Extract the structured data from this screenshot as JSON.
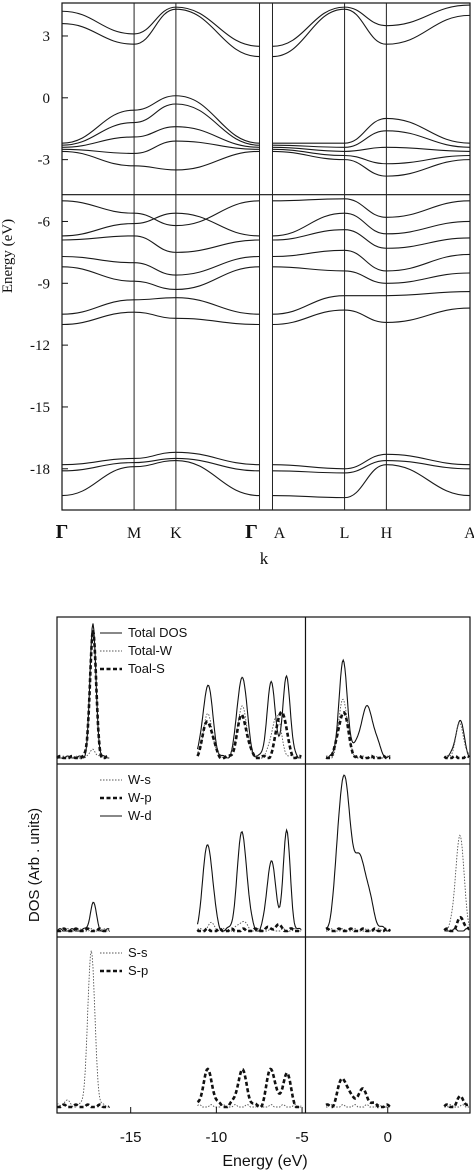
{
  "chart_data": [
    {
      "type": "line",
      "subtype": "band-structure",
      "ylabel": "Energy (eV)",
      "xlabel": "k",
      "ylim": [
        -20,
        4.6
      ],
      "y_ticks": [
        3,
        0,
        -3,
        -6,
        -9,
        -12,
        -15,
        -18
      ],
      "k_points": [
        {
          "label": "Γ",
          "x": 0,
          "font": "bold"
        },
        {
          "label": "M",
          "x": 1.0
        },
        {
          "label": "K",
          "x": 1.58
        },
        {
          "label": "Γ",
          "x": 2.74,
          "font": "bold"
        },
        {
          "label": "A",
          "x": 2.92
        },
        {
          "label": "L",
          "x": 3.92
        },
        {
          "label": "H",
          "x": 4.5
        },
        {
          "label": "A",
          "x": 5.66
        }
      ],
      "gap_line_y": -4.7,
      "bands": [
        [
          4.2,
          3.1,
          4.4,
          2.5,
          4.4,
          3.5,
          4.5
        ],
        [
          3.6,
          2.6,
          4.3,
          2.0,
          4.3,
          2.6,
          4.0
        ],
        [
          -2.2,
          -0.6,
          0.1,
          -2.2,
          -2.2,
          -1.0,
          -2.2
        ],
        [
          -2.3,
          -1.2,
          -0.3,
          -2.3,
          -2.4,
          -1.6,
          -2.4
        ],
        [
          -2.4,
          -1.9,
          -1.4,
          -2.4,
          -2.6,
          -2.4,
          -2.6
        ],
        [
          -2.5,
          -2.7,
          -2.1,
          -2.5,
          -2.8,
          -3.2,
          -2.8
        ],
        [
          -2.6,
          -3.3,
          -3.5,
          -2.6,
          -3.0,
          -3.8,
          -3.0
        ],
        [
          -5.0,
          -5.6,
          -6.2,
          -5.0,
          -4.9,
          -5.8,
          -5.0
        ],
        [
          -6.7,
          -6.1,
          -5.6,
          -6.7,
          -5.6,
          -6.6,
          -6.0
        ],
        [
          -6.9,
          -6.7,
          -7.5,
          -6.9,
          -6.4,
          -7.3,
          -6.8
        ],
        [
          -7.7,
          -8.0,
          -8.6,
          -7.7,
          -7.4,
          -8.4,
          -7.6
        ],
        [
          -8.2,
          -8.9,
          -9.3,
          -8.2,
          -8.4,
          -9.0,
          -8.5
        ],
        [
          -10.5,
          -9.8,
          -9.7,
          -10.5,
          -9.6,
          -9.6,
          -9.4
        ],
        [
          -11.0,
          -10.4,
          -10.7,
          -11.0,
          -10.3,
          -10.9,
          -10.2
        ],
        [
          -17.8,
          -17.5,
          -17.2,
          -17.8,
          -18.0,
          -17.3,
          -17.8
        ],
        [
          -18.1,
          -17.7,
          -17.5,
          -18.1,
          -18.2,
          -17.6,
          -18.0
        ],
        [
          -19.3,
          -17.9,
          -17.6,
          -19.3,
          -19.4,
          -17.8,
          -19.3
        ]
      ]
    },
    {
      "type": "line",
      "subtype": "density-of-states",
      "ylabel": "DOS (Arb . units)",
      "xlabel": "Energy (eV)",
      "xlim": [
        -19.3,
        4.8
      ],
      "x_ticks": [
        -15,
        -10,
        -5,
        0
      ],
      "fermi_line_x": -4.8,
      "panels": [
        {
          "legend": [
            {
              "label": "Total DOS",
              "style": "solid"
            },
            {
              "label": "Total-W",
              "style": "dotted"
            },
            {
              "label": "Toal-S",
              "style": "dashed-bold"
            }
          ],
          "peaks": [
            {
              "series": 0,
              "x": -17.2,
              "height": 1.0,
              "width": 0.25
            },
            {
              "series": 0,
              "x": -10.5,
              "height": 0.55,
              "width": 0.4
            },
            {
              "series": 0,
              "x": -8.5,
              "height": 0.62,
              "width": 0.4
            },
            {
              "series": 0,
              "x": -6.8,
              "height": 0.56,
              "width": 0.35
            },
            {
              "series": 0,
              "x": -5.9,
              "height": 0.62,
              "width": 0.3
            },
            {
              "series": 0,
              "x": -2.6,
              "height": 0.72,
              "width": 0.35
            },
            {
              "series": 0,
              "x": -1.2,
              "height": 0.38,
              "width": 0.6
            },
            {
              "series": 0,
              "x": 4.2,
              "height": 0.28,
              "width": 0.35
            },
            {
              "series": 1,
              "x": -17.2,
              "height": 0.08,
              "width": 0.2
            },
            {
              "series": 1,
              "x": -10.5,
              "height": 0.32,
              "width": 0.4
            },
            {
              "series": 1,
              "x": -8.5,
              "height": 0.38,
              "width": 0.4
            },
            {
              "series": 1,
              "x": -6.5,
              "height": 0.32,
              "width": 0.4
            },
            {
              "series": 1,
              "x": -2.6,
              "height": 0.45,
              "width": 0.35
            },
            {
              "series": 1,
              "x": 4.2,
              "height": 0.25,
              "width": 0.35
            },
            {
              "series": 2,
              "x": -17.2,
              "height": 0.96,
              "width": 0.25
            },
            {
              "series": 2,
              "x": -10.5,
              "height": 0.28,
              "width": 0.4
            },
            {
              "series": 2,
              "x": -8.5,
              "height": 0.32,
              "width": 0.4
            },
            {
              "series": 2,
              "x": -6.2,
              "height": 0.36,
              "width": 0.4
            },
            {
              "series": 2,
              "x": -2.6,
              "height": 0.35,
              "width": 0.4
            }
          ]
        },
        {
          "legend": [
            {
              "label": "W-s",
              "style": "dotted"
            },
            {
              "label": "W-p",
              "style": "dashed-bold"
            },
            {
              "label": "W-d",
              "style": "solid"
            }
          ],
          "peaks": [
            {
              "series": 2,
              "x": -17.2,
              "height": 0.18,
              "width": 0.25
            },
            {
              "series": 2,
              "x": -10.5,
              "height": 0.55,
              "width": 0.4
            },
            {
              "series": 2,
              "x": -8.5,
              "height": 0.62,
              "width": 0.4
            },
            {
              "series": 2,
              "x": -6.8,
              "height": 0.45,
              "width": 0.35
            },
            {
              "series": 2,
              "x": -5.9,
              "height": 0.62,
              "width": 0.3
            },
            {
              "series": 2,
              "x": -2.6,
              "height": 0.92,
              "width": 0.5
            },
            {
              "series": 2,
              "x": -1.6,
              "height": 0.45,
              "width": 0.7
            },
            {
              "series": 0,
              "x": -10.3,
              "height": 0.04,
              "width": 0.4
            },
            {
              "series": 0,
              "x": -8.5,
              "height": 0.07,
              "width": 0.3
            },
            {
              "series": 0,
              "x": 4.2,
              "height": 0.6,
              "width": 0.35
            },
            {
              "series": 1,
              "x": -6.5,
              "height": 0.03,
              "width": 0.5
            },
            {
              "series": 1,
              "x": 4.3,
              "height": 0.08,
              "width": 0.3
            }
          ]
        },
        {
          "legend": [
            {
              "label": "S-s",
              "style": "dotted"
            },
            {
              "label": "S-p",
              "style": "dashed-bold"
            }
          ],
          "peaks": [
            {
              "series": 0,
              "x": -17.3,
              "height": 0.95,
              "width": 0.3
            },
            {
              "series": 0,
              "x": -18.8,
              "height": 0.03,
              "width": 0.5
            },
            {
              "series": 1,
              "x": -10.5,
              "height": 0.22,
              "width": 0.4
            },
            {
              "series": 1,
              "x": -8.5,
              "height": 0.22,
              "width": 0.4
            },
            {
              "series": 1,
              "x": -6.8,
              "height": 0.24,
              "width": 0.35
            },
            {
              "series": 1,
              "x": -5.9,
              "height": 0.22,
              "width": 0.3
            },
            {
              "series": 1,
              "x": -2.6,
              "height": 0.18,
              "width": 0.4
            },
            {
              "series": 1,
              "x": -1.5,
              "height": 0.1,
              "width": 0.5
            },
            {
              "series": 1,
              "x": 4.3,
              "height": 0.06,
              "width": 0.3
            }
          ]
        }
      ]
    }
  ]
}
